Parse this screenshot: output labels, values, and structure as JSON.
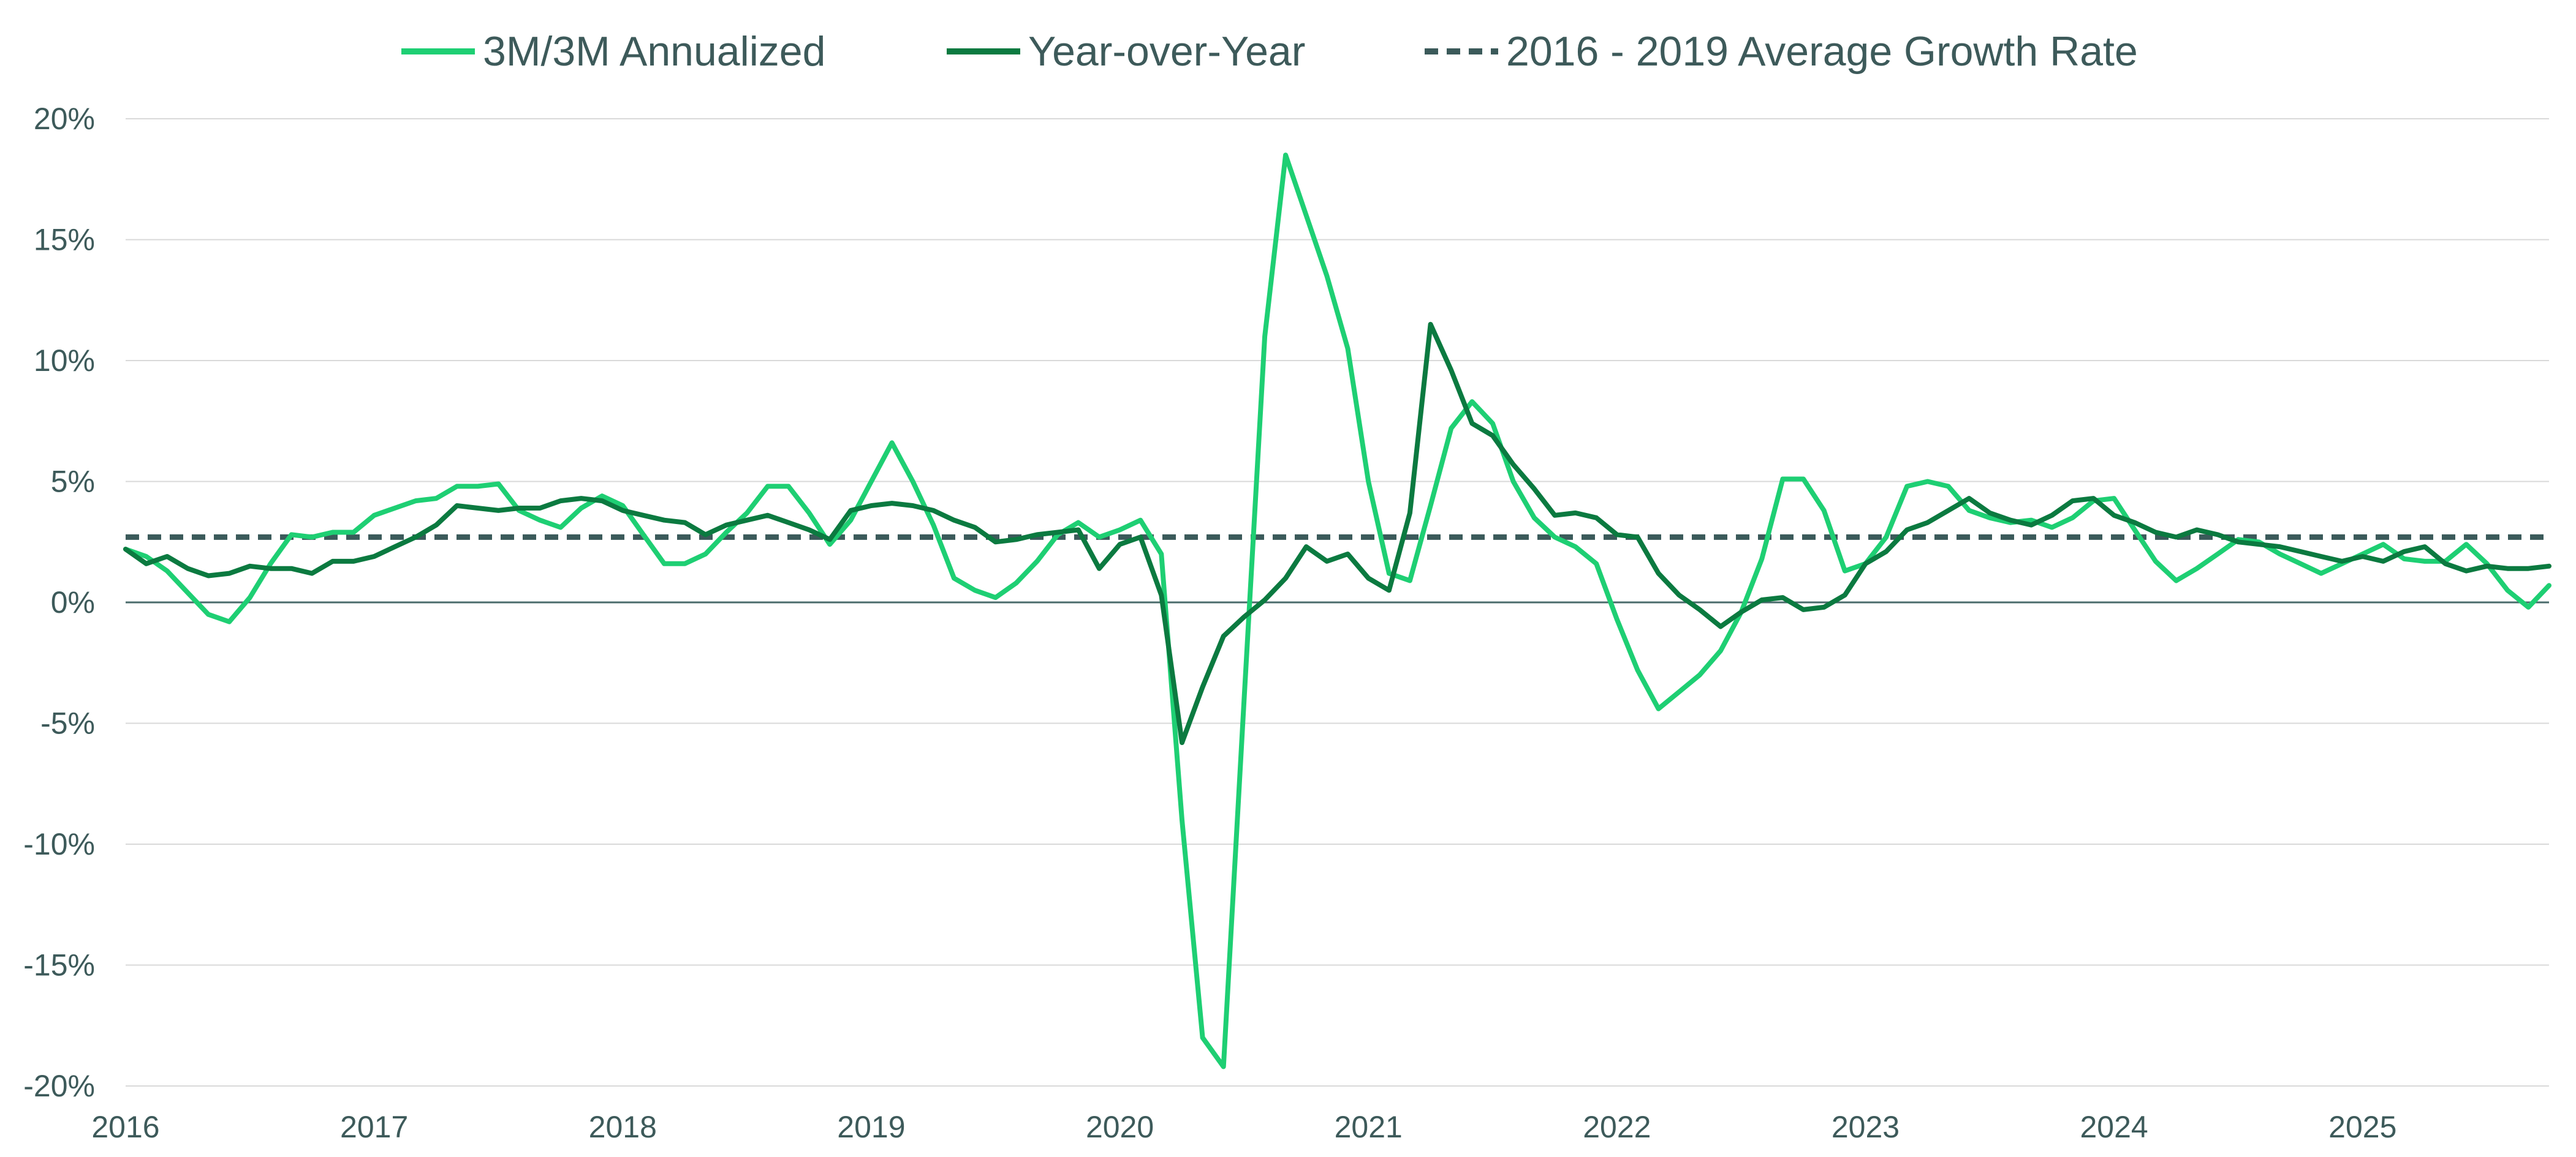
{
  "chart_data": {
    "type": "line",
    "title": "",
    "xlabel": "",
    "ylabel": "",
    "ylim": [
      -20,
      20
    ],
    "yticks": [
      20,
      15,
      10,
      5,
      0,
      -5,
      -10,
      -15,
      -20
    ],
    "ytick_labels": [
      "20%",
      "15%",
      "10%",
      "5%",
      "0%",
      "-5%",
      "-10%",
      "-15%",
      "-20%"
    ],
    "xlim": [
      2016.0,
      2025.75
    ],
    "xticks": [
      2016,
      2017,
      2018,
      2019,
      2020,
      2021,
      2022,
      2023,
      2024,
      2025
    ],
    "xtick_labels": [
      "2016",
      "2017",
      "2018",
      "2019",
      "2020",
      "2021",
      "2022",
      "2023",
      "2024",
      "2025"
    ],
    "grid": true,
    "legend_position": "top-center",
    "series": [
      {
        "name": "3M/3M Annualized",
        "color": "#1ecf73",
        "style": "solid",
        "x": [
          2016.0,
          2016.083,
          2016.167,
          2016.25,
          2016.333,
          2016.417,
          2016.5,
          2016.583,
          2016.667,
          2016.75,
          2016.833,
          2016.917,
          2017.0,
          2017.083,
          2017.167,
          2017.25,
          2017.333,
          2017.417,
          2017.5,
          2017.583,
          2017.667,
          2017.75,
          2017.833,
          2017.917,
          2018.0,
          2018.083,
          2018.167,
          2018.25,
          2018.333,
          2018.417,
          2018.5,
          2018.583,
          2018.667,
          2018.75,
          2018.833,
          2018.917,
          2019.0,
          2019.083,
          2019.167,
          2019.25,
          2019.333,
          2019.417,
          2019.5,
          2019.583,
          2019.667,
          2019.75,
          2019.833,
          2019.917,
          2020.0,
          2020.083,
          2020.167,
          2020.25,
          2020.333,
          2020.417,
          2020.5,
          2020.583,
          2020.667,
          2020.75,
          2020.833,
          2020.917,
          2021.0,
          2021.083,
          2021.167,
          2021.25,
          2021.333,
          2021.417,
          2021.5,
          2021.583,
          2021.667,
          2021.75,
          2021.833,
          2021.917,
          2022.0,
          2022.083,
          2022.167,
          2022.25,
          2022.333,
          2022.417,
          2022.5,
          2022.583,
          2022.667,
          2022.75,
          2022.833,
          2022.917,
          2023.0,
          2023.083,
          2023.167,
          2023.25,
          2023.333,
          2023.417,
          2023.5,
          2023.583,
          2023.667,
          2023.75,
          2023.833,
          2023.917,
          2024.0,
          2024.083,
          2024.167,
          2024.25,
          2024.333,
          2024.417,
          2024.5,
          2024.583,
          2024.667,
          2024.75,
          2024.833,
          2024.917,
          2025.0,
          2025.083,
          2025.167,
          2025.25,
          2025.333,
          2025.417,
          2025.5,
          2025.583,
          2025.667,
          2025.75
        ],
        "values": [
          2.2,
          1.9,
          1.3,
          0.4,
          -0.5,
          -0.8,
          0.2,
          1.6,
          2.8,
          2.7,
          2.9,
          2.9,
          3.6,
          3.9,
          4.2,
          4.3,
          4.8,
          4.8,
          4.9,
          3.8,
          3.4,
          3.1,
          3.9,
          4.4,
          4.0,
          2.8,
          1.6,
          1.6,
          2.0,
          2.9,
          3.7,
          4.8,
          4.8,
          3.7,
          2.4,
          3.4,
          5.0,
          6.6,
          5.0,
          3.2,
          1.0,
          0.5,
          0.2,
          0.8,
          1.7,
          2.8,
          3.3,
          2.7,
          3.0,
          3.4,
          2.0,
          -9.0,
          -18.0,
          -19.2,
          -4.0,
          11.0,
          18.5,
          16.0,
          13.5,
          10.5,
          5.0,
          1.2,
          0.9,
          4.0,
          7.2,
          8.3,
          7.4,
          5.0,
          3.5,
          2.7,
          2.3,
          1.6,
          -0.7,
          -2.8,
          -4.4,
          -3.7,
          -3.0,
          -2.0,
          -0.4,
          1.8,
          5.1,
          5.1,
          3.8,
          1.3,
          1.6,
          2.7,
          4.8,
          5.0,
          4.8,
          3.8,
          3.5,
          3.3,
          3.4,
          3.1,
          3.5,
          4.2,
          4.3,
          3.0,
          1.7,
          0.9,
          1.4,
          2.0,
          2.6,
          2.5,
          2.0,
          1.6,
          1.2,
          1.6,
          2.0,
          2.4,
          1.8,
          1.7,
          1.7,
          2.4,
          1.6,
          0.5,
          -0.2,
          0.7
        ]
      },
      {
        "name": "Year-over-Year",
        "color": "#0b7a40",
        "style": "solid",
        "x": [
          2016.0,
          2016.083,
          2016.167,
          2016.25,
          2016.333,
          2016.417,
          2016.5,
          2016.583,
          2016.667,
          2016.75,
          2016.833,
          2016.917,
          2017.0,
          2017.083,
          2017.167,
          2017.25,
          2017.333,
          2017.417,
          2017.5,
          2017.583,
          2017.667,
          2017.75,
          2017.833,
          2017.917,
          2018.0,
          2018.083,
          2018.167,
          2018.25,
          2018.333,
          2018.417,
          2018.5,
          2018.583,
          2018.667,
          2018.75,
          2018.833,
          2018.917,
          2019.0,
          2019.083,
          2019.167,
          2019.25,
          2019.333,
          2019.417,
          2019.5,
          2019.583,
          2019.667,
          2019.75,
          2019.833,
          2019.917,
          2020.0,
          2020.083,
          2020.167,
          2020.25,
          2020.333,
          2020.417,
          2020.5,
          2020.583,
          2020.667,
          2020.75,
          2020.833,
          2020.917,
          2021.0,
          2021.083,
          2021.167,
          2021.25,
          2021.333,
          2021.417,
          2021.5,
          2021.583,
          2021.667,
          2021.75,
          2021.833,
          2021.917,
          2022.0,
          2022.083,
          2022.167,
          2022.25,
          2022.333,
          2022.417,
          2022.5,
          2022.583,
          2022.667,
          2022.75,
          2022.833,
          2022.917,
          2023.0,
          2023.083,
          2023.167,
          2023.25,
          2023.333,
          2023.417,
          2023.5,
          2023.583,
          2023.667,
          2023.75,
          2023.833,
          2023.917,
          2024.0,
          2024.083,
          2024.167,
          2024.25,
          2024.333,
          2024.417,
          2024.5,
          2024.583,
          2024.667,
          2024.75,
          2024.833,
          2024.917,
          2025.0,
          2025.083,
          2025.167,
          2025.25,
          2025.333,
          2025.417,
          2025.5,
          2025.583,
          2025.667,
          2025.75
        ],
        "values": [
          2.2,
          1.6,
          1.9,
          1.4,
          1.1,
          1.2,
          1.5,
          1.4,
          1.4,
          1.2,
          1.7,
          1.7,
          1.9,
          2.3,
          2.7,
          3.2,
          4.0,
          3.9,
          3.8,
          3.9,
          3.9,
          4.2,
          4.3,
          4.2,
          3.8,
          3.6,
          3.4,
          3.3,
          2.8,
          3.2,
          3.4,
          3.6,
          3.3,
          3.0,
          2.6,
          3.8,
          4.0,
          4.1,
          4.0,
          3.8,
          3.4,
          3.1,
          2.5,
          2.6,
          2.8,
          2.9,
          3.0,
          1.4,
          2.4,
          2.7,
          0.3,
          -5.8,
          -3.5,
          -1.4,
          -0.6,
          0.1,
          1.0,
          2.3,
          1.7,
          2.0,
          1.0,
          0.5,
          3.7,
          11.5,
          9.6,
          7.4,
          6.9,
          5.7,
          4.7,
          3.6,
          3.7,
          3.5,
          2.8,
          2.7,
          1.2,
          0.3,
          -0.3,
          -1.0,
          -0.4,
          0.1,
          0.2,
          -0.3,
          -0.2,
          0.3,
          1.6,
          2.1,
          3.0,
          3.3,
          3.8,
          4.3,
          3.7,
          3.4,
          3.2,
          3.6,
          4.2,
          4.3,
          3.6,
          3.3,
          2.9,
          2.7,
          3.0,
          2.8,
          2.5,
          2.4,
          2.3,
          2.1,
          1.9,
          1.7,
          1.9,
          1.7,
          2.1,
          2.3,
          1.6,
          1.3,
          1.5,
          1.4,
          1.4,
          1.5
        ]
      },
      {
        "name": "2016 - 2019 Average Growth Rate",
        "color": "#3b5a5a",
        "style": "dashed",
        "x": [
          2016.0,
          2025.75
        ],
        "values": [
          2.7,
          2.7
        ]
      }
    ]
  }
}
